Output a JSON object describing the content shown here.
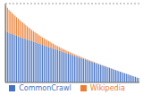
{
  "chart_data": {
    "type": "bar",
    "categories": [
      null,
      null,
      null,
      null,
      null,
      null,
      null,
      null,
      null,
      null,
      null,
      null,
      null,
      null,
      null,
      null,
      null,
      null,
      null,
      null,
      null,
      null,
      null,
      null,
      null,
      null,
      null,
      null,
      null,
      null,
      null,
      null,
      null,
      null,
      null,
      null,
      null,
      null,
      null,
      null,
      null,
      null,
      null,
      null,
      null,
      null,
      null,
      null,
      null,
      null,
      null,
      null,
      null,
      null,
      null,
      null,
      null,
      null,
      null,
      null,
      null,
      null,
      null,
      null,
      null,
      null,
      null,
      null,
      null,
      null,
      null,
      null,
      null,
      null,
      null,
      null,
      null,
      null,
      null,
      null,
      null,
      null,
      null,
      null,
      null,
      null,
      null,
      null
    ],
    "series": [
      {
        "name": "CommonCrawl",
        "color": "#4472C4",
        "values": [
          9.8,
          9.6,
          9.4,
          9.3,
          9.2,
          9.1,
          9.0,
          8.85,
          8.75,
          8.65,
          8.55,
          8.45,
          8.35,
          8.25,
          8.15,
          8.05,
          7.95,
          7.85,
          7.75,
          7.65,
          7.55,
          7.45,
          7.35,
          7.25,
          7.15,
          7.05,
          6.95,
          6.85,
          6.75,
          6.65,
          6.55,
          6.45,
          6.35,
          6.25,
          6.15,
          6.05,
          5.95,
          5.85,
          5.75,
          5.65,
          5.55,
          5.45,
          5.35,
          5.25,
          5.15,
          5.05,
          4.95,
          4.85,
          4.75,
          4.65,
          4.55,
          4.45,
          4.35,
          4.25,
          4.15,
          4.05,
          3.95,
          3.85,
          3.75,
          3.65,
          3.55,
          3.45,
          3.35,
          3.25,
          3.15,
          3.05,
          2.95,
          2.85,
          2.75,
          2.65,
          2.55,
          2.45,
          2.35,
          2.25,
          2.15,
          2.05,
          1.95,
          1.85,
          1.75,
          1.65,
          1.55,
          1.45,
          1.35,
          1.25,
          1.15,
          1.05,
          0.95,
          0.85
        ]
      },
      {
        "name": "Wikipedia",
        "color": "#ED7D31",
        "values": [
          4.8,
          4.6,
          4.4,
          4.2,
          4.0,
          3.85,
          3.7,
          3.55,
          3.4,
          3.25,
          3.1,
          2.95,
          2.8,
          2.65,
          2.5,
          2.38,
          2.26,
          2.14,
          2.02,
          1.92,
          1.82,
          1.72,
          1.62,
          1.52,
          1.43,
          1.35,
          1.27,
          1.19,
          1.12,
          1.05,
          0.98,
          0.91,
          0.85,
          0.79,
          0.74,
          0.69,
          0.64,
          0.59,
          0.55,
          0.51,
          0.47,
          0.44,
          0.41,
          0.38,
          0.35,
          0.32,
          0.3,
          0.28,
          0.26,
          0.24,
          0.22,
          0.2,
          0.19,
          0.18,
          0.17,
          0.16,
          0.15,
          0.14,
          0.13,
          0.12,
          0.11,
          0.1,
          0.09,
          0.08,
          0.07,
          0.06,
          0.055,
          0.05,
          0.045,
          0.04,
          0.035,
          0.03,
          0.025,
          0.02,
          0.018,
          0.016,
          0.014,
          0.012,
          0.01,
          0.008,
          0.006,
          0.005,
          0.004,
          0.003,
          0.0025,
          0.002,
          0.0015,
          0.001
        ]
      }
    ],
    "ylim": [
      0,
      15
    ],
    "stacked": true,
    "tick_labels": false,
    "grid": false,
    "legend": "bottom"
  }
}
